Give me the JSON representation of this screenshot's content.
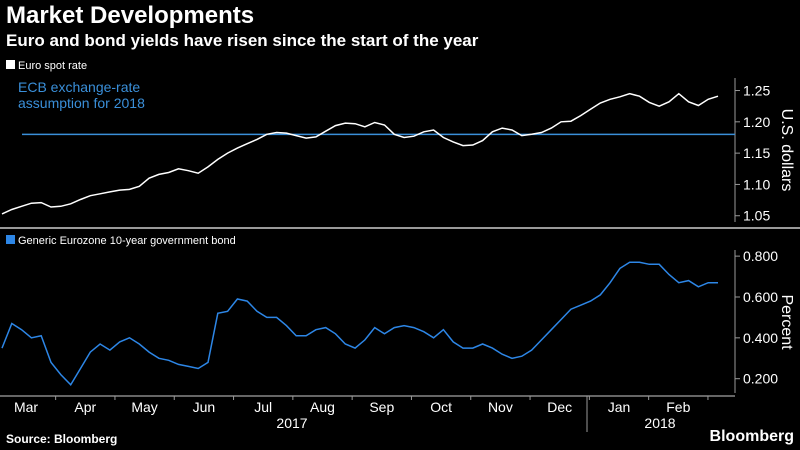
{
  "title": "Market Developments",
  "subtitle": "Euro and bond yields have risen since the start of the year",
  "source": "Source: Bloomberg",
  "brand": "Bloomberg",
  "chart_data": [
    {
      "type": "line",
      "legend": "Euro spot rate",
      "ylabel": "U.S. dollars",
      "ylim": [
        1.04,
        1.27
      ],
      "yticks": [
        "1.05",
        "1.10",
        "1.15",
        "1.20",
        "1.25"
      ],
      "annotation": [
        "ECB exchange-rate",
        "assumption for 2018"
      ],
      "reference_line": 1.18,
      "colors": {
        "line": "#ffffff",
        "reference": "#3a8fd9"
      },
      "series": [
        {
          "values": [
            1.053,
            1.06,
            1.065,
            1.07,
            1.071,
            1.064,
            1.065,
            1.069,
            1.076,
            1.082,
            1.085,
            1.088,
            1.091,
            1.092,
            1.097,
            1.11,
            1.116,
            1.119,
            1.125,
            1.122,
            1.118,
            1.128,
            1.14,
            1.15,
            1.158,
            1.165,
            1.172,
            1.18,
            1.183,
            1.182,
            1.178,
            1.174,
            1.176,
            1.185,
            1.194,
            1.198,
            1.197,
            1.192,
            1.199,
            1.195,
            1.18,
            1.175,
            1.177,
            1.184,
            1.187,
            1.175,
            1.168,
            1.162,
            1.163,
            1.17,
            1.184,
            1.19,
            1.187,
            1.178,
            1.18,
            1.183,
            1.19,
            1.2,
            1.201,
            1.21,
            1.22,
            1.23,
            1.236,
            1.24,
            1.245,
            1.241,
            1.231,
            1.225,
            1.232,
            1.245,
            1.232,
            1.226,
            1.236,
            1.241
          ]
        }
      ]
    },
    {
      "type": "line",
      "legend": "Generic Eurozone 10-year government bond",
      "ylabel": "Percent",
      "ylim": [
        0.13,
        0.83
      ],
      "yticks": [
        "0.200",
        "0.400",
        "0.600",
        "0.800"
      ],
      "colors": {
        "line": "#2d86e6"
      },
      "xticks": [
        "Mar",
        "Apr",
        "May",
        "Jun",
        "Jul",
        "Aug",
        "Sep",
        "Oct",
        "Nov",
        "Dec",
        "Jan",
        "Feb"
      ],
      "year_labels": [
        "2017",
        "2018"
      ],
      "series": [
        {
          "values": [
            0.35,
            0.47,
            0.44,
            0.4,
            0.41,
            0.28,
            0.22,
            0.17,
            0.25,
            0.33,
            0.37,
            0.34,
            0.38,
            0.4,
            0.37,
            0.33,
            0.3,
            0.29,
            0.27,
            0.26,
            0.25,
            0.28,
            0.52,
            0.53,
            0.59,
            0.58,
            0.53,
            0.5,
            0.5,
            0.46,
            0.41,
            0.41,
            0.44,
            0.45,
            0.42,
            0.37,
            0.35,
            0.39,
            0.45,
            0.42,
            0.45,
            0.46,
            0.45,
            0.43,
            0.4,
            0.44,
            0.38,
            0.35,
            0.35,
            0.37,
            0.35,
            0.32,
            0.3,
            0.31,
            0.34,
            0.39,
            0.44,
            0.49,
            0.54,
            0.56,
            0.58,
            0.61,
            0.67,
            0.74,
            0.77,
            0.77,
            0.76,
            0.76,
            0.71,
            0.67,
            0.68,
            0.65,
            0.67,
            0.67
          ]
        }
      ]
    }
  ]
}
